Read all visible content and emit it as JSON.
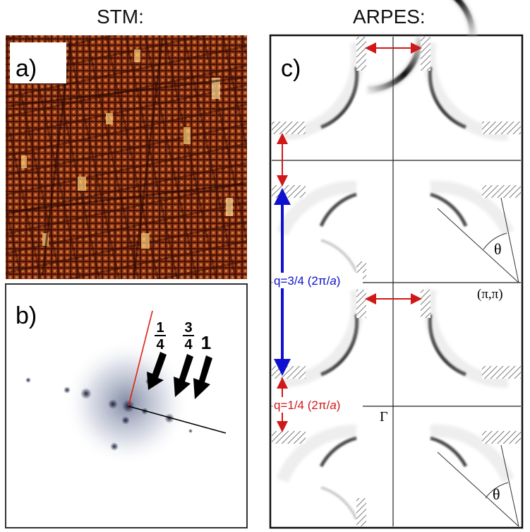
{
  "titles": {
    "left": "STM:",
    "right": "ARPES:"
  },
  "panels": {
    "a": {
      "label": "a)"
    },
    "b": {
      "label": "b)",
      "arrow_labels": {
        "quarter_num": "1",
        "quarter_den": "4",
        "threequarter_num": "3",
        "threequarter_den": "4",
        "one": "1"
      }
    },
    "c": {
      "label": "c)",
      "q_large": {
        "prefix": "q=3/4 (2π/",
        "var": "a",
        "suffix": ")"
      },
      "q_small": {
        "prefix": "q=1/4 (2π/",
        "var": "a",
        "suffix": ")"
      },
      "pi_point": "(π,π)",
      "gamma": "Γ",
      "theta_upper": "θ",
      "theta_lower": "θ"
    }
  },
  "colors": {
    "stm_dark": "#3a0c04",
    "stm_mid": "#8a3414",
    "stm_bright": "#ffd27a",
    "q_blue": "#1010d0",
    "q_red": "#d01818"
  }
}
